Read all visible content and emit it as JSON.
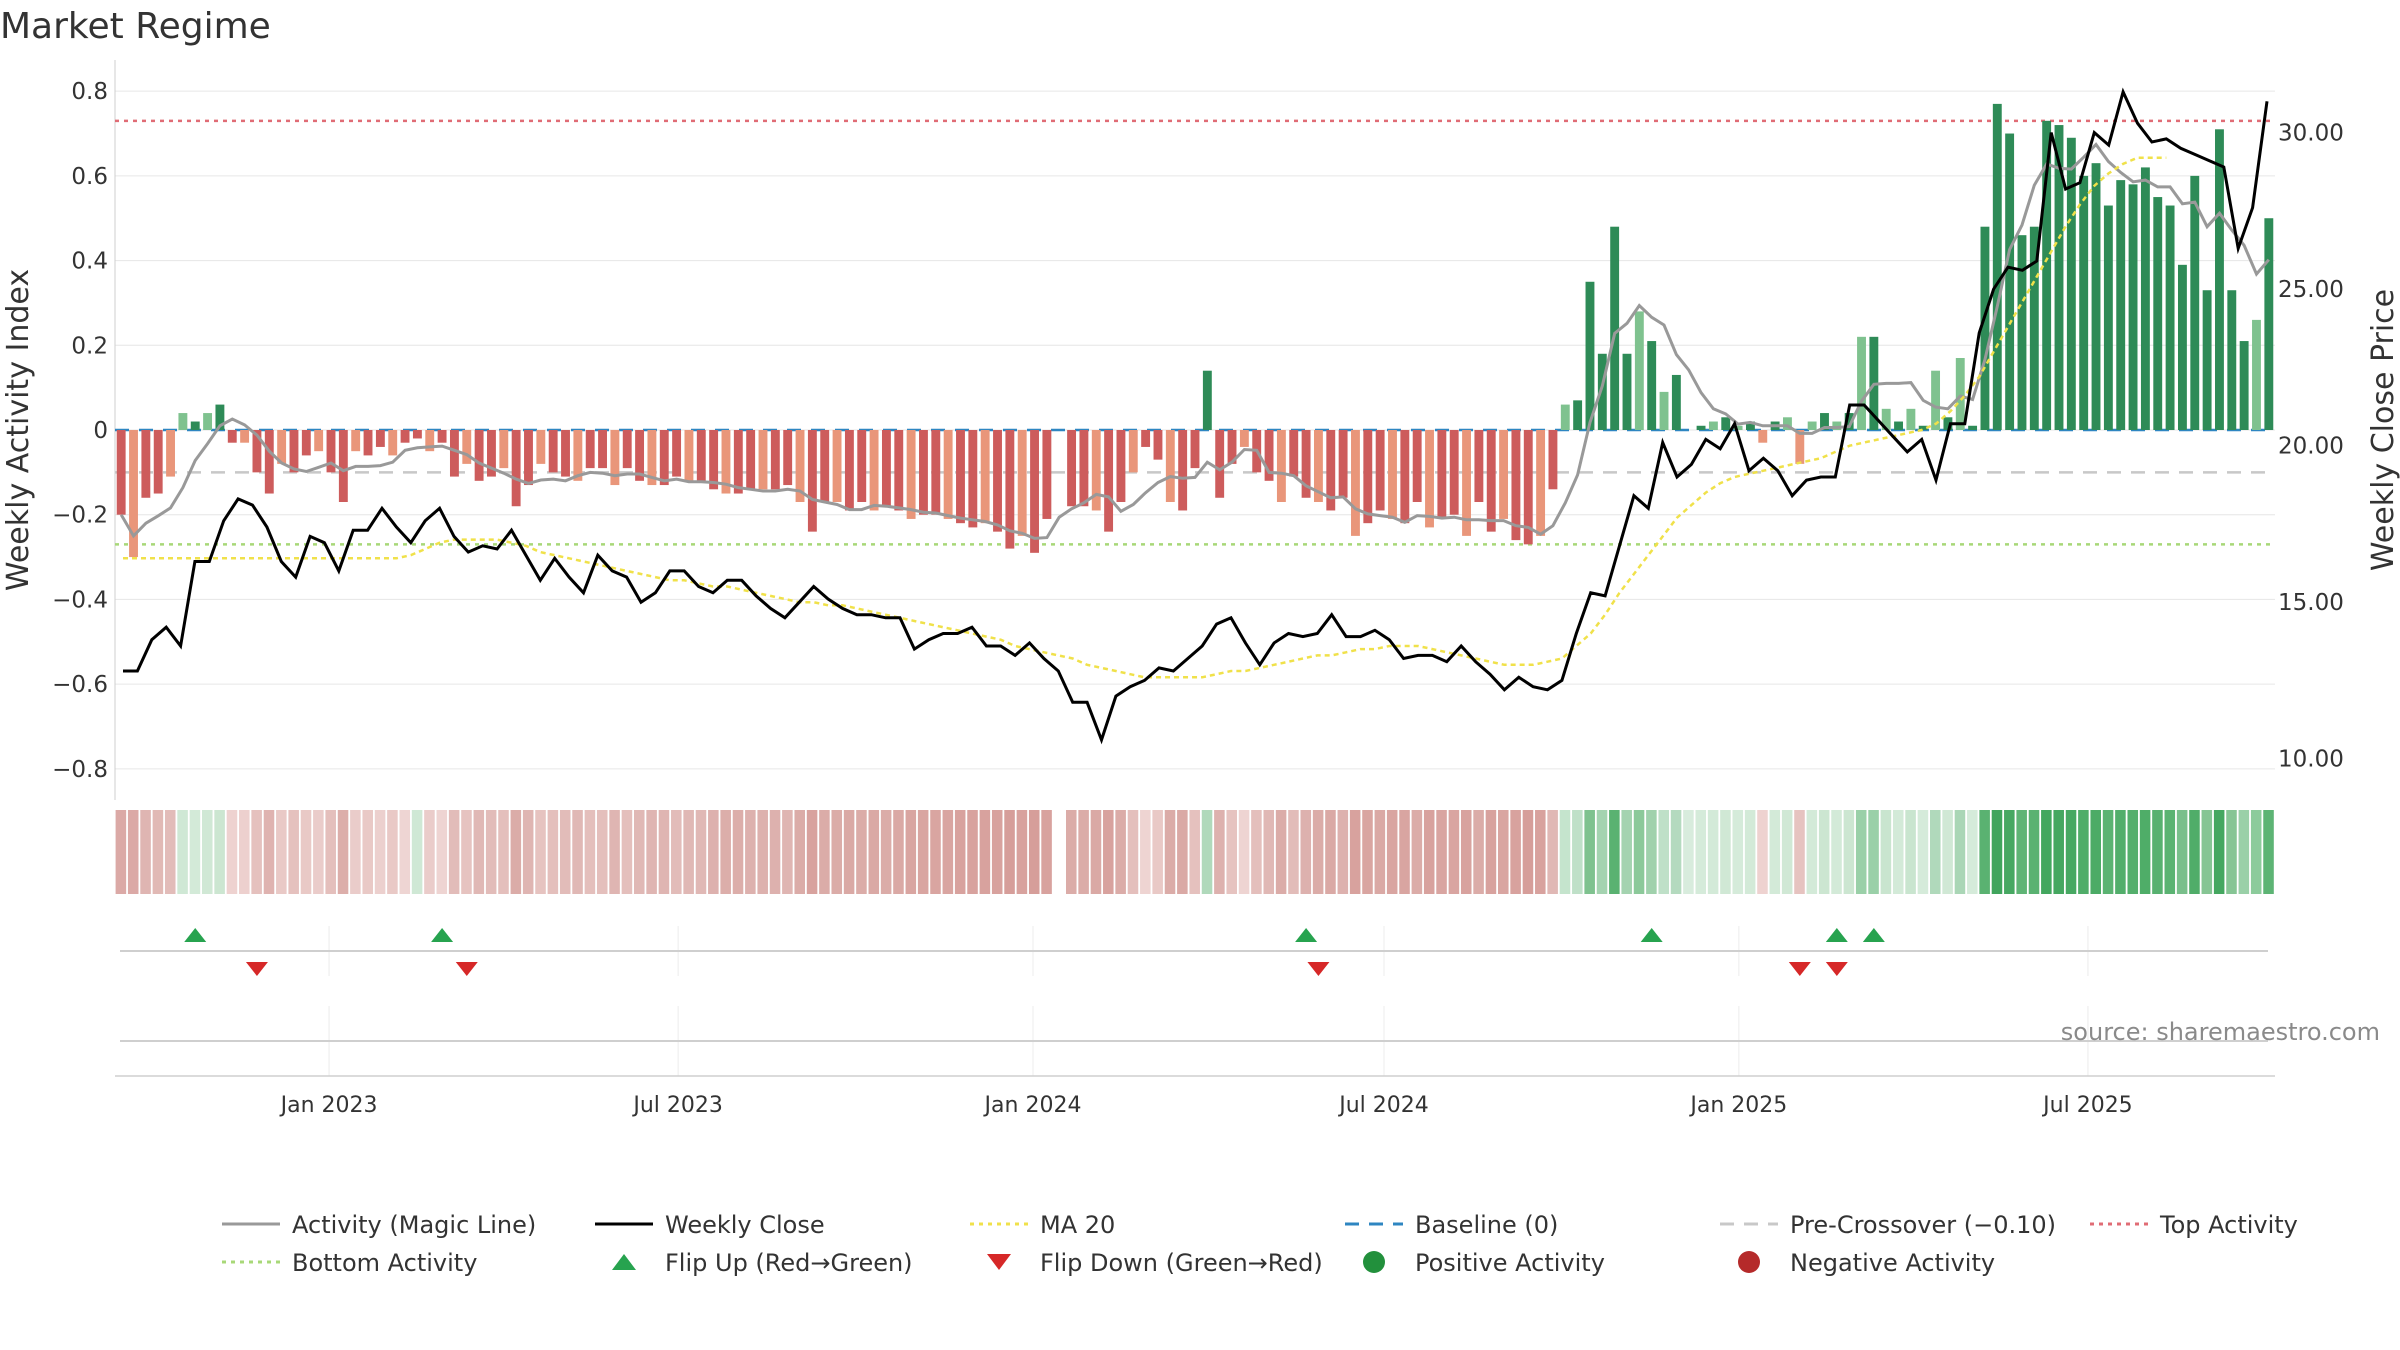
{
  "chart_data": {
    "type": "bar",
    "title": "Market Regime",
    "ylabel": "Weekly Activity Index",
    "y2label": "Weekly Close Price",
    "ylim": [
      -0.85,
      0.85
    ],
    "y2lim": [
      9.0,
      32.0
    ],
    "yticks": [
      -0.8,
      -0.6,
      -0.4,
      -0.2,
      0,
      0.2,
      0.4,
      0.6,
      0.8
    ],
    "ytick_labels": [
      "−0.8",
      "−0.6",
      "−0.4",
      "−0.2",
      "0",
      "0.2",
      "0.4",
      "0.6",
      "0.8"
    ],
    "y2ticks": [
      10,
      15,
      20,
      25,
      30
    ],
    "y2tick_labels": [
      "10.00",
      "15.00",
      "20.00",
      "25.00",
      "30.00"
    ],
    "x_start": "2022-09-12",
    "x_end": "2025-10-06",
    "xticks": [
      {
        "date": "2023-01-01",
        "label": "Jan 2023"
      },
      {
        "date": "2023-07-01",
        "label": "Jul 2023"
      },
      {
        "date": "2024-01-01",
        "label": "Jan 2024"
      },
      {
        "date": "2024-07-01",
        "label": "Jul 2024"
      },
      {
        "date": "2025-01-01",
        "label": "Jan 2025"
      },
      {
        "date": "2025-07-01",
        "label": "Jul 2025"
      }
    ],
    "reference_lines": {
      "baseline": 0,
      "pre_crossover": -0.1,
      "top_activity": 0.73,
      "bottom_activity": -0.27
    },
    "activity": [
      -0.2,
      -0.3,
      -0.16,
      -0.15,
      -0.11,
      0.04,
      0.02,
      0.04,
      0.06,
      -0.03,
      -0.03,
      -0.1,
      -0.15,
      -0.08,
      -0.1,
      -0.06,
      -0.05,
      -0.1,
      -0.17,
      -0.05,
      -0.06,
      -0.04,
      -0.06,
      -0.03,
      -0.02,
      -0.05,
      -0.03,
      -0.11,
      -0.08,
      -0.12,
      -0.11,
      -0.09,
      -0.18,
      -0.13,
      -0.08,
      -0.1,
      -0.11,
      -0.12,
      -0.09,
      -0.09,
      -0.13,
      -0.09,
      -0.12,
      -0.13,
      -0.13,
      -0.11,
      -0.12,
      -0.12,
      -0.14,
      -0.15,
      -0.15,
      -0.14,
      -0.14,
      -0.14,
      -0.13,
      -0.17,
      -0.24,
      -0.17,
      -0.17,
      -0.19,
      -0.17,
      -0.19,
      -0.18,
      -0.19,
      -0.21,
      -0.2,
      -0.2,
      -0.21,
      -0.22,
      -0.23,
      -0.22,
      -0.24,
      -0.28,
      -0.25,
      -0.29,
      -0.21,
      0,
      -0.18,
      -0.18,
      -0.19,
      -0.24,
      -0.17,
      -0.1,
      -0.04,
      -0.07,
      -0.17,
      -0.19,
      -0.09,
      0.14,
      -0.16,
      -0.08,
      -0.04,
      -0.1,
      -0.12,
      -0.17,
      -0.11,
      -0.16,
      -0.17,
      -0.19,
      -0.16,
      -0.25,
      -0.22,
      -0.19,
      -0.21,
      -0.22,
      -0.17,
      -0.23,
      -0.21,
      -0.2,
      -0.25,
      -0.17,
      -0.24,
      -0.21,
      -0.26,
      -0.27,
      -0.25,
      -0.14,
      0.06,
      0.07,
      0.35,
      0.18,
      0.48,
      0.18,
      0.28,
      0.21,
      0.09,
      0.13,
      0,
      0.01,
      0.02,
      0.03,
      0.01,
      0.02,
      -0.03,
      0.02,
      0.03,
      -0.08,
      0.02,
      0.04,
      0.02,
      0.04,
      0.22,
      0.22,
      0.05,
      0.02,
      0.05,
      0.01,
      0.14,
      0.03,
      0.17,
      0.01,
      0.48,
      0.77,
      0.7,
      0.46,
      0.48,
      0.73,
      0.72,
      0.69,
      0.6,
      0.63,
      0.53,
      0.59,
      0.58,
      0.62,
      0.55,
      0.53,
      0.39,
      0.6,
      0.33,
      0.71,
      0.33,
      0.21,
      0.26,
      0.5
    ],
    "weekly_close": [
      12.8,
      12.8,
      13.8,
      14.2,
      13.6,
      16.3,
      16.3,
      17.6,
      18.3,
      18.1,
      17.4,
      16.3,
      15.8,
      17.1,
      16.9,
      16.0,
      17.3,
      17.3,
      18.0,
      17.4,
      16.9,
      17.6,
      18.0,
      17.1,
      16.6,
      16.8,
      16.7,
      17.3,
      16.5,
      15.7,
      16.4,
      15.8,
      15.3,
      16.5,
      16.0,
      15.8,
      15.0,
      15.3,
      16.0,
      16.0,
      15.5,
      15.3,
      15.7,
      15.7,
      15.2,
      14.8,
      14.5,
      15.0,
      15.5,
      15.1,
      14.8,
      14.6,
      14.6,
      14.5,
      14.5,
      13.5,
      13.8,
      14.0,
      14.0,
      14.2,
      13.6,
      13.6,
      13.3,
      13.7,
      13.2,
      12.8,
      11.8,
      11.8,
      10.6,
      12.0,
      12.3,
      12.5,
      12.9,
      12.8,
      13.2,
      13.6,
      14.3,
      14.5,
      13.7,
      13.0,
      13.7,
      14.0,
      13.9,
      14.0,
      14.6,
      13.9,
      13.9,
      14.1,
      13.8,
      13.2,
      13.3,
      13.3,
      13.1,
      13.6,
      13.1,
      12.7,
      12.2,
      12.6,
      12.3,
      12.2,
      12.5,
      14.0,
      15.3,
      15.2,
      16.8,
      18.4,
      18.0,
      20.1,
      19.0,
      19.4,
      20.2,
      19.9,
      20.7,
      19.2,
      19.6,
      19.2,
      18.4,
      18.9,
      19.0,
      19.0,
      21.3,
      21.3,
      20.8,
      20.3,
      19.8,
      20.2,
      18.9,
      20.7,
      20.7,
      23.6,
      25.0,
      25.7,
      25.6,
      25.9,
      30.0,
      28.2,
      28.4,
      30.0,
      29.6,
      31.3,
      30.3,
      29.7,
      29.8,
      29.5,
      29.3,
      29.1,
      28.9,
      26.3,
      27.6,
      31.0
    ],
    "ma20": [
      16.4,
      16.4,
      16.4,
      16.4,
      16.4,
      16.4,
      16.4,
      16.4,
      16.4,
      16.4,
      16.4,
      16.4,
      16.4,
      16.4,
      16.4,
      16.4,
      16.4,
      16.4,
      16.4,
      16.4,
      16.5,
      16.7,
      16.9,
      17.0,
      17.0,
      17.0,
      17.0,
      16.9,
      16.8,
      16.6,
      16.5,
      16.4,
      16.3,
      16.2,
      16.1,
      16.0,
      15.9,
      15.8,
      15.7,
      15.7,
      15.6,
      15.5,
      15.5,
      15.4,
      15.3,
      15.2,
      15.1,
      15.0,
      15.0,
      14.9,
      14.9,
      14.8,
      14.7,
      14.6,
      14.5,
      14.4,
      14.3,
      14.2,
      14.1,
      14.0,
      13.9,
      13.8,
      13.6,
      13.5,
      13.4,
      13.3,
      13.2,
      13.0,
      12.9,
      12.8,
      12.7,
      12.6,
      12.6,
      12.6,
      12.6,
      12.6,
      12.7,
      12.8,
      12.8,
      12.9,
      13.0,
      13.1,
      13.2,
      13.3,
      13.3,
      13.4,
      13.5,
      13.5,
      13.6,
      13.6,
      13.6,
      13.5,
      13.4,
      13.3,
      13.2,
      13.1,
      13.0,
      13.0,
      13.0,
      13.1,
      13.2,
      13.6,
      14.0,
      14.6,
      15.3,
      15.9,
      16.5,
      17.1,
      17.7,
      18.1,
      18.5,
      18.8,
      19.0,
      19.1,
      19.2,
      19.3,
      19.4,
      19.5,
      19.6,
      19.8,
      20.0,
      20.1,
      20.2,
      20.3,
      20.4,
      20.5,
      20.7,
      21.1,
      21.6,
      22.2,
      23.0,
      23.8,
      24.6,
      25.4,
      26.2,
      27.0,
      27.7,
      28.3,
      28.7,
      29.0,
      29.2,
      29.2,
      29.2
    ],
    "bars_gap_after": 75,
    "regime_strip_colors": [
      "#dba9a6",
      "#dba9a6",
      "#dfb5b2",
      "#e1b9b5",
      "#e2bcb9",
      "#cfe8d5",
      "#d3ead8",
      "#d0e8d5",
      "#cce6d1",
      "#eed2d0",
      "#edd0ce",
      "#e5c1be",
      "#dfb3b0",
      "#e9c9c6",
      "#e5c1be",
      "#e9c9c6",
      "#eaccca",
      "#e4bfbc",
      "#dcaeaa",
      "#eaccca",
      "#e9c9c6",
      "#ecd0ce",
      "#e9c9c6",
      "#eed5d3",
      "#cfe8d5",
      "#eaccca",
      "#eed4d2",
      "#e2bcb9",
      "#e6c3c0",
      "#e0b8b5",
      "#e2bcb9",
      "#e4bfbc",
      "#dbaca8",
      "#dfb5b2",
      "#e6c3c0",
      "#e4bfbc",
      "#e2bcb9",
      "#e0b8b5",
      "#e4bfbc",
      "#e4bfbc",
      "#dfb5b2",
      "#e4bfbc",
      "#e0b8b5",
      "#dfb5b2",
      "#dfb5b2",
      "#e2bcb9",
      "#e0b8b5",
      "#e0b8b5",
      "#ddb1ae",
      "#dcaeaa",
      "#dcaeaa",
      "#ddb1ae",
      "#ddb1ae",
      "#ddb1ae",
      "#dfb5b2",
      "#dbaca8",
      "#d8a29e",
      "#dbaca8",
      "#dbaca8",
      "#daa9a5",
      "#dbaca8",
      "#daa9a5",
      "#dbaca8",
      "#daa9a5",
      "#d9a5a1",
      "#d9a5a1",
      "#d9a5a1",
      "#d9a5a1",
      "#d8a29e",
      "#d8a29e",
      "#d8a29e",
      "#d8a29e",
      "#d69e9a",
      "#d8a29e",
      "#d69e9a",
      "#d8a29e",
      "#ffffff",
      "#dbaca8",
      "#dbaca8",
      "#daa9a5",
      "#d8a29e",
      "#dbaca8",
      "#e4bfbc",
      "#eed4d2",
      "#e9c9c6",
      "#dbaca8",
      "#daa9a5",
      "#e5c1be",
      "#b0d9bb",
      "#ddb1ae",
      "#e6c3c0",
      "#eed4d2",
      "#e4bfbc",
      "#e0b8b5",
      "#dbaca8",
      "#e2bcb9",
      "#ddb1ae",
      "#dbaca8",
      "#daa9a5",
      "#ddb1ae",
      "#d8a29e",
      "#d9a5a1",
      "#daa9a5",
      "#d9a5a1",
      "#d9a5a1",
      "#dbaca8",
      "#d8a29e",
      "#d9a5a1",
      "#d9a5a1",
      "#d8a29e",
      "#dbaca8",
      "#d8a29e",
      "#d9a5a1",
      "#d8a29e",
      "#d69e9a",
      "#d8a29e",
      "#e0b8b5",
      "#c5e4cd",
      "#bfe0c8",
      "#7fc28f",
      "#a4d3b0",
      "#5ab271",
      "#a4d3b0",
      "#8cc99a",
      "#a0d1ac",
      "#bfe0c8",
      "#b4dabf",
      "#d8ecdd",
      "#d5ebda",
      "#d3ead8",
      "#d0e8d5",
      "#d5ebda",
      "#d3ead8",
      "#eed2d0",
      "#d3ead8",
      "#d0e8d5",
      "#e6c3c0",
      "#d3ead8",
      "#cce6d1",
      "#d3ead8",
      "#cce6d1",
      "#9ad0a8",
      "#9ad0a8",
      "#c9e5cf",
      "#d3ead8",
      "#c9e5cf",
      "#d5ebda",
      "#b0d9bb",
      "#d0e8d5",
      "#aad6b6",
      "#d5ebda",
      "#5ab271",
      "#41a55d",
      "#47a862",
      "#5fb475",
      "#5ab271",
      "#43a75f",
      "#45a760",
      "#47a862",
      "#50ad69",
      "#4cab66",
      "#5bb372",
      "#52ae6b",
      "#54af6c",
      "#4fad68",
      "#58b170",
      "#5bb372",
      "#79bf8b",
      "#50ad69",
      "#86c594",
      "#45a760",
      "#86c594",
      "#9ad0a8",
      "#8ccb9b",
      "#5db474"
    ],
    "flip_up_weeks": [
      6,
      26,
      96,
      124,
      139,
      142
    ],
    "flip_down_weeks": [
      11,
      28,
      97,
      136,
      139
    ]
  },
  "legend": [
    {
      "key": "activity",
      "label": "Activity (Magic Line)",
      "color": "#999999",
      "style": "solid"
    },
    {
      "key": "close",
      "label": "Weekly Close",
      "color": "#000000",
      "style": "solid"
    },
    {
      "key": "ma20",
      "label": "MA 20",
      "color": "#f0e14a",
      "style": "dotted"
    },
    {
      "key": "baseline",
      "label": "Baseline (0)",
      "color": "#2e86c1",
      "style": "dashed"
    },
    {
      "key": "precross",
      "label": "Pre-Crossover (−0.10)",
      "color": "#c8c8c8",
      "style": "dashed"
    },
    {
      "key": "top",
      "label": "Top Activity",
      "color": "#e06c75",
      "style": "dotted"
    },
    {
      "key": "bottom",
      "label": "Bottom Activity",
      "color": "#a8d878",
      "style": "dotted"
    },
    {
      "key": "flipup",
      "label": "Flip Up (Red→Green)",
      "color": "#27a34f",
      "style": "triangle-up"
    },
    {
      "key": "flipdown",
      "label": "Flip Down (Green→Red)",
      "color": "#d62828",
      "style": "triangle-down"
    },
    {
      "key": "pos",
      "label": "Positive Activity",
      "color": "#22903c",
      "style": "circle"
    },
    {
      "key": "neg",
      "label": "Negative Activity",
      "color": "#b52a2a",
      "style": "circle"
    }
  ],
  "colors": {
    "pos_strong": "#2e8b57",
    "pos_light": "#7fc28f",
    "neg_strong": "#cd5c5c",
    "neg_light": "#e9967a",
    "activity_line": "#999999",
    "close_line": "#000000",
    "ma_line": "#f0e14a"
  },
  "source": "source: sharemaestro.com"
}
